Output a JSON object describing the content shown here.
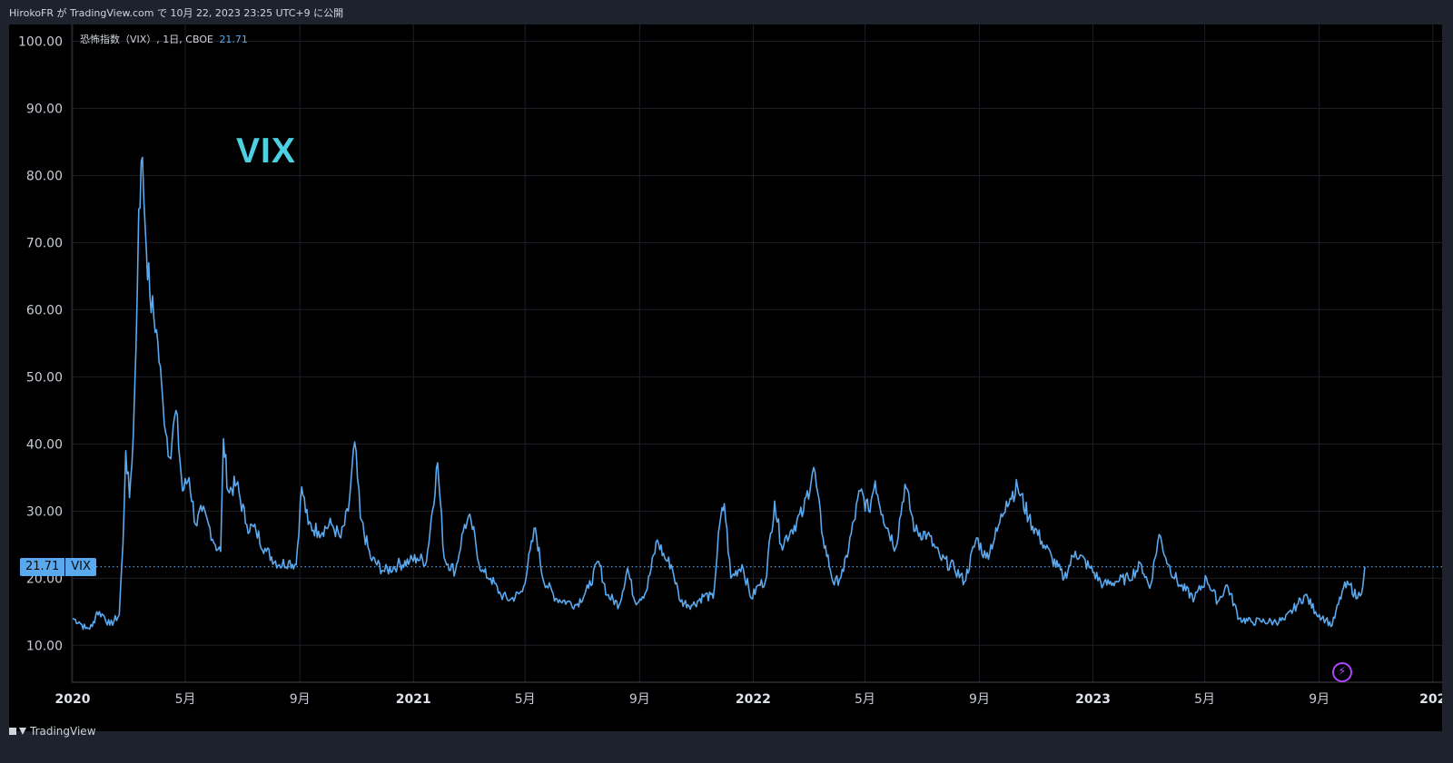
{
  "header": {
    "publish_text": "HirokoFR が TradingView.com で 10月 22, 2023 23:25 UTC+9 に公開"
  },
  "legend": {
    "symbol_text": "恐怖指数（VIX）, 1日, CBOE",
    "last_value": "21.71"
  },
  "watermark": "VIX",
  "price_tag": {
    "value": "21.71",
    "label": "VIX"
  },
  "footer": {
    "brand": "TradingView"
  },
  "colors": {
    "line": "#5aa8ee",
    "background": "#000000",
    "grid": "#1c1f26",
    "watermark": "#4dd0e1",
    "bolt_icon": "#b044ff"
  },
  "chart_data": {
    "type": "line",
    "title": "恐怖指数（VIX）, 1日, CBOE",
    "xlabel": "",
    "ylabel": "",
    "ylim": [
      4.5,
      102.5
    ],
    "y_ticks": [
      {
        "value": 10,
        "label": "10.00"
      },
      {
        "value": 20,
        "label": "20.00"
      },
      {
        "value": 30,
        "label": "30.00"
      },
      {
        "value": 40,
        "label": "40.00"
      },
      {
        "value": 50,
        "label": "50.00"
      },
      {
        "value": 60,
        "label": "60.00"
      },
      {
        "value": 70,
        "label": "70.00"
      },
      {
        "value": 80,
        "label": "80.00"
      },
      {
        "value": 90,
        "label": "90.00"
      },
      {
        "value": 100,
        "label": "100.00"
      }
    ],
    "x_range": [
      "2019-12-31",
      "2024-01-11"
    ],
    "x_ticks": [
      {
        "date": "2020-01-01",
        "label": "2020",
        "bold": true
      },
      {
        "date": "2020-05-01",
        "label": "5月",
        "bold": false
      },
      {
        "date": "2020-09-01",
        "label": "9月",
        "bold": false
      },
      {
        "date": "2021-01-01",
        "label": "2021",
        "bold": true
      },
      {
        "date": "2021-05-01",
        "label": "5月",
        "bold": false
      },
      {
        "date": "2021-09-01",
        "label": "9月",
        "bold": false
      },
      {
        "date": "2022-01-01",
        "label": "2022",
        "bold": true
      },
      {
        "date": "2022-05-01",
        "label": "5月",
        "bold": false
      },
      {
        "date": "2022-09-01",
        "label": "9月",
        "bold": false
      },
      {
        "date": "2023-01-01",
        "label": "2023",
        "bold": true
      },
      {
        "date": "2023-05-01",
        "label": "5月",
        "bold": false
      },
      {
        "date": "2023-09-01",
        "label": "9月",
        "bold": false
      },
      {
        "date": "2024-01-01",
        "label": "202",
        "bold": true
      }
    ],
    "current_value": 21.71,
    "series": [
      {
        "points": [
          [
            "2020-01-01",
            14.0
          ],
          [
            "2020-01-08",
            13.5
          ],
          [
            "2020-01-15",
            12.5
          ],
          [
            "2020-01-22",
            12.8
          ],
          [
            "2020-01-27",
            15.0
          ],
          [
            "2020-02-03",
            14.5
          ],
          [
            "2020-02-10",
            13.0
          ],
          [
            "2020-02-20",
            14.5
          ],
          [
            "2020-02-24",
            25.0
          ],
          [
            "2020-02-27",
            39.0
          ],
          [
            "2020-03-02",
            32.0
          ],
          [
            "2020-03-06",
            41.0
          ],
          [
            "2020-03-09",
            54.0
          ],
          [
            "2020-03-12",
            75.0
          ],
          [
            "2020-03-16",
            82.7
          ],
          [
            "2020-03-19",
            72.0
          ],
          [
            "2020-03-24",
            62.0
          ],
          [
            "2020-03-31",
            57.0
          ],
          [
            "2020-04-07",
            46.0
          ],
          [
            "2020-04-14",
            38.0
          ],
          [
            "2020-04-21",
            45.0
          ],
          [
            "2020-04-28",
            33.0
          ],
          [
            "2020-05-05",
            35.0
          ],
          [
            "2020-05-12",
            28.0
          ],
          [
            "2020-05-19",
            30.0
          ],
          [
            "2020-05-26",
            28.0
          ],
          [
            "2020-06-02",
            25.0
          ],
          [
            "2020-06-08",
            24.0
          ],
          [
            "2020-06-11",
            40.8
          ],
          [
            "2020-06-16",
            33.0
          ],
          [
            "2020-06-25",
            34.0
          ],
          [
            "2020-07-06",
            28.0
          ],
          [
            "2020-07-16",
            27.0
          ],
          [
            "2020-07-27",
            24.0
          ],
          [
            "2020-08-10",
            22.0
          ],
          [
            "2020-08-20",
            22.5
          ],
          [
            "2020-08-28",
            22.0
          ],
          [
            "2020-09-03",
            33.6
          ],
          [
            "2020-09-10",
            28.0
          ],
          [
            "2020-09-21",
            27.0
          ],
          [
            "2020-10-05",
            28.0
          ],
          [
            "2020-10-15",
            26.0
          ],
          [
            "2020-10-23",
            30.0
          ],
          [
            "2020-10-30",
            40.3
          ],
          [
            "2020-11-05",
            29.0
          ],
          [
            "2020-11-16",
            23.0
          ],
          [
            "2020-12-01",
            21.0
          ],
          [
            "2020-12-15",
            22.0
          ],
          [
            "2020-12-28",
            22.5
          ],
          [
            "2021-01-05",
            23.0
          ],
          [
            "2021-01-15",
            22.5
          ],
          [
            "2021-01-27",
            37.2
          ],
          [
            "2021-02-03",
            23.0
          ],
          [
            "2021-02-15",
            21.0
          ],
          [
            "2021-02-25",
            28.0
          ],
          [
            "2021-03-04",
            28.5
          ],
          [
            "2021-03-15",
            21.0
          ],
          [
            "2021-03-25",
            20.0
          ],
          [
            "2021-04-05",
            17.5
          ],
          [
            "2021-04-15",
            16.8
          ],
          [
            "2021-04-28",
            18.0
          ],
          [
            "2021-05-12",
            27.5
          ],
          [
            "2021-05-20",
            20.0
          ],
          [
            "2021-06-03",
            17.0
          ],
          [
            "2021-06-15",
            16.5
          ],
          [
            "2021-06-25",
            16.0
          ],
          [
            "2021-07-08",
            18.5
          ],
          [
            "2021-07-19",
            22.5
          ],
          [
            "2021-07-28",
            17.5
          ],
          [
            "2021-08-10",
            16.0
          ],
          [
            "2021-08-19",
            21.5
          ],
          [
            "2021-08-27",
            16.5
          ],
          [
            "2021-09-08",
            18.0
          ],
          [
            "2021-09-20",
            25.7
          ],
          [
            "2021-09-28",
            23.0
          ],
          [
            "2021-10-05",
            22.0
          ],
          [
            "2021-10-15",
            16.5
          ],
          [
            "2021-10-28",
            16.0
          ],
          [
            "2021-11-10",
            17.5
          ],
          [
            "2021-11-19",
            17.0
          ],
          [
            "2021-11-26",
            28.0
          ],
          [
            "2021-12-01",
            31.1
          ],
          [
            "2021-12-08",
            20.0
          ],
          [
            "2021-12-20",
            22.0
          ],
          [
            "2021-12-30",
            17.0
          ],
          [
            "2022-01-07",
            19.0
          ],
          [
            "2022-01-14",
            19.5
          ],
          [
            "2022-01-24",
            31.5
          ],
          [
            "2022-01-31",
            25.0
          ],
          [
            "2022-02-10",
            27.0
          ],
          [
            "2022-02-24",
            30.0
          ],
          [
            "2022-03-07",
            36.5
          ],
          [
            "2022-03-17",
            26.0
          ],
          [
            "2022-03-29",
            19.0
          ],
          [
            "2022-04-08",
            21.0
          ],
          [
            "2022-04-26",
            33.0
          ],
          [
            "2022-05-05",
            30.0
          ],
          [
            "2022-05-12",
            34.5
          ],
          [
            "2022-05-20",
            29.5
          ],
          [
            "2022-06-03",
            24.5
          ],
          [
            "2022-06-13",
            34.0
          ],
          [
            "2022-06-24",
            27.0
          ],
          [
            "2022-07-07",
            26.5
          ],
          [
            "2022-07-21",
            23.0
          ],
          [
            "2022-08-05",
            21.5
          ],
          [
            "2022-08-16",
            19.5
          ],
          [
            "2022-08-29",
            26.0
          ],
          [
            "2022-09-08",
            23.0
          ],
          [
            "2022-09-20",
            27.0
          ],
          [
            "2022-09-30",
            31.5
          ],
          [
            "2022-10-12",
            33.6
          ],
          [
            "2022-10-24",
            29.0
          ],
          [
            "2022-11-07",
            25.5
          ],
          [
            "2022-11-18",
            23.0
          ],
          [
            "2022-12-01",
            20.0
          ],
          [
            "2022-12-13",
            24.0
          ],
          [
            "2022-12-29",
            21.5
          ],
          [
            "2023-01-12",
            19.0
          ],
          [
            "2023-01-25",
            19.5
          ],
          [
            "2023-02-08",
            20.0
          ],
          [
            "2023-02-22",
            22.0
          ],
          [
            "2023-03-03",
            18.5
          ],
          [
            "2023-03-13",
            26.5
          ],
          [
            "2023-03-23",
            22.0
          ],
          [
            "2023-04-04",
            19.0
          ],
          [
            "2023-04-20",
            17.0
          ],
          [
            "2023-05-03",
            20.0
          ],
          [
            "2023-05-15",
            16.5
          ],
          [
            "2023-05-25",
            19.0
          ],
          [
            "2023-06-07",
            14.0
          ],
          [
            "2023-06-20",
            13.5
          ],
          [
            "2023-06-30",
            13.6
          ],
          [
            "2023-07-14",
            13.5
          ],
          [
            "2023-07-26",
            13.8
          ],
          [
            "2023-08-08",
            16.0
          ],
          [
            "2023-08-17",
            17.5
          ],
          [
            "2023-08-28",
            15.0
          ],
          [
            "2023-09-08",
            13.8
          ],
          [
            "2023-09-15",
            13.0
          ],
          [
            "2023-09-27",
            18.5
          ],
          [
            "2023-10-04",
            19.0
          ],
          [
            "2023-10-12",
            17.0
          ],
          [
            "2023-10-18",
            19.0
          ],
          [
            "2023-10-20",
            21.71
          ]
        ]
      }
    ]
  }
}
